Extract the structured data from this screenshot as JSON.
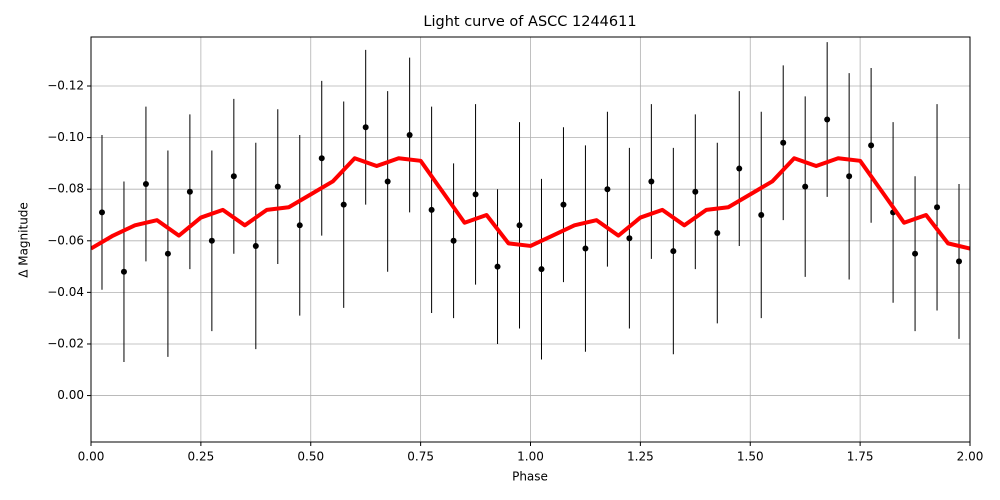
{
  "chart_data": {
    "type": "errorbar_line",
    "title": "Light curve of ASCC 1244611",
    "x_label": "Phase",
    "y_label": "Δ Magnitude",
    "xlim": [
      0,
      2
    ],
    "ylim": [
      -0.139,
      0.018
    ],
    "y_inverted": true,
    "grid": true,
    "xticks": [
      {
        "value": 0,
        "label": "0.00"
      },
      {
        "value": 0.25,
        "label": "0.25"
      },
      {
        "value": 0.5,
        "label": "0.50"
      },
      {
        "value": 0.75,
        "label": "0.75"
      },
      {
        "value": 1,
        "label": "1.00"
      },
      {
        "value": 1.25,
        "label": "1.25"
      },
      {
        "value": 1.5,
        "label": "1.50"
      },
      {
        "value": 1.75,
        "label": "1.75"
      },
      {
        "value": 2,
        "label": "2.00"
      }
    ],
    "yticks": [
      {
        "value": -0.12,
        "label": "−0.12"
      },
      {
        "value": -0.1,
        "label": "−0.10"
      },
      {
        "value": -0.08,
        "label": "−0.08"
      },
      {
        "value": -0.06,
        "label": "−0.06"
      },
      {
        "value": -0.04,
        "label": "−0.04"
      },
      {
        "value": -0.02,
        "label": "−0.02"
      },
      {
        "value": 0,
        "label": "0.00"
      }
    ],
    "points": {
      "color": "#000000",
      "x": [
        0.025,
        0.075,
        0.125,
        0.175,
        0.225,
        0.275,
        0.325,
        0.375,
        0.425,
        0.475,
        0.525,
        0.575,
        0.625,
        0.675,
        0.725,
        0.775,
        0.825,
        0.875,
        0.925,
        0.975,
        1.025,
        1.075,
        1.125,
        1.175,
        1.225,
        1.275,
        1.325,
        1.375,
        1.425,
        1.475,
        1.525,
        1.575,
        1.625,
        1.675,
        1.725,
        1.775,
        1.825,
        1.875,
        1.925,
        1.975
      ],
      "values": [
        -0.071,
        -0.048,
        -0.082,
        -0.055,
        -0.079,
        -0.06,
        -0.085,
        -0.058,
        -0.081,
        -0.066,
        -0.092,
        -0.074,
        -0.104,
        -0.083,
        -0.101,
        -0.072,
        -0.06,
        -0.078,
        -0.05,
        -0.066,
        -0.049,
        -0.074,
        -0.057,
        -0.08,
        -0.061,
        -0.083,
        -0.056,
        -0.079,
        -0.063,
        -0.088,
        -0.07,
        -0.098,
        -0.081,
        -0.107,
        -0.085,
        -0.097,
        -0.071,
        -0.055,
        -0.073,
        -0.052
      ],
      "errors": [
        0.03,
        0.035,
        0.03,
        0.04,
        0.03,
        0.035,
        0.03,
        0.04,
        0.03,
        0.035,
        0.03,
        0.04,
        0.03,
        0.035,
        0.03,
        0.04,
        0.03,
        0.035,
        0.03,
        0.04,
        0.035,
        0.03,
        0.04,
        0.03,
        0.035,
        0.03,
        0.04,
        0.03,
        0.035,
        0.03,
        0.04,
        0.03,
        0.035,
        0.03,
        0.04,
        0.03,
        0.035,
        0.03,
        0.04,
        0.03
      ]
    },
    "smooth": {
      "color": "#ff0000",
      "x": [
        0,
        0.05,
        0.1,
        0.15,
        0.2,
        0.25,
        0.3,
        0.35,
        0.4,
        0.45,
        0.5,
        0.55,
        0.6,
        0.65,
        0.7,
        0.75,
        0.8,
        0.85,
        0.9,
        0.95,
        1,
        1.05,
        1.1,
        1.15,
        1.2,
        1.25,
        1.3,
        1.35,
        1.4,
        1.45,
        1.5,
        1.55,
        1.6,
        1.65,
        1.7,
        1.75,
        1.8,
        1.85,
        1.9,
        1.95,
        2
      ],
      "values": [
        -0.057,
        -0.062,
        -0.066,
        -0.068,
        -0.062,
        -0.069,
        -0.072,
        -0.066,
        -0.072,
        -0.073,
        -0.078,
        -0.083,
        -0.092,
        -0.089,
        -0.092,
        -0.091,
        -0.079,
        -0.067,
        -0.07,
        -0.059,
        -0.058,
        -0.062,
        -0.066,
        -0.068,
        -0.062,
        -0.069,
        -0.072,
        -0.066,
        -0.072,
        -0.073,
        -0.078,
        -0.083,
        -0.092,
        -0.089,
        -0.092,
        -0.091,
        -0.079,
        -0.067,
        -0.07,
        -0.059,
        -0.057
      ]
    }
  }
}
